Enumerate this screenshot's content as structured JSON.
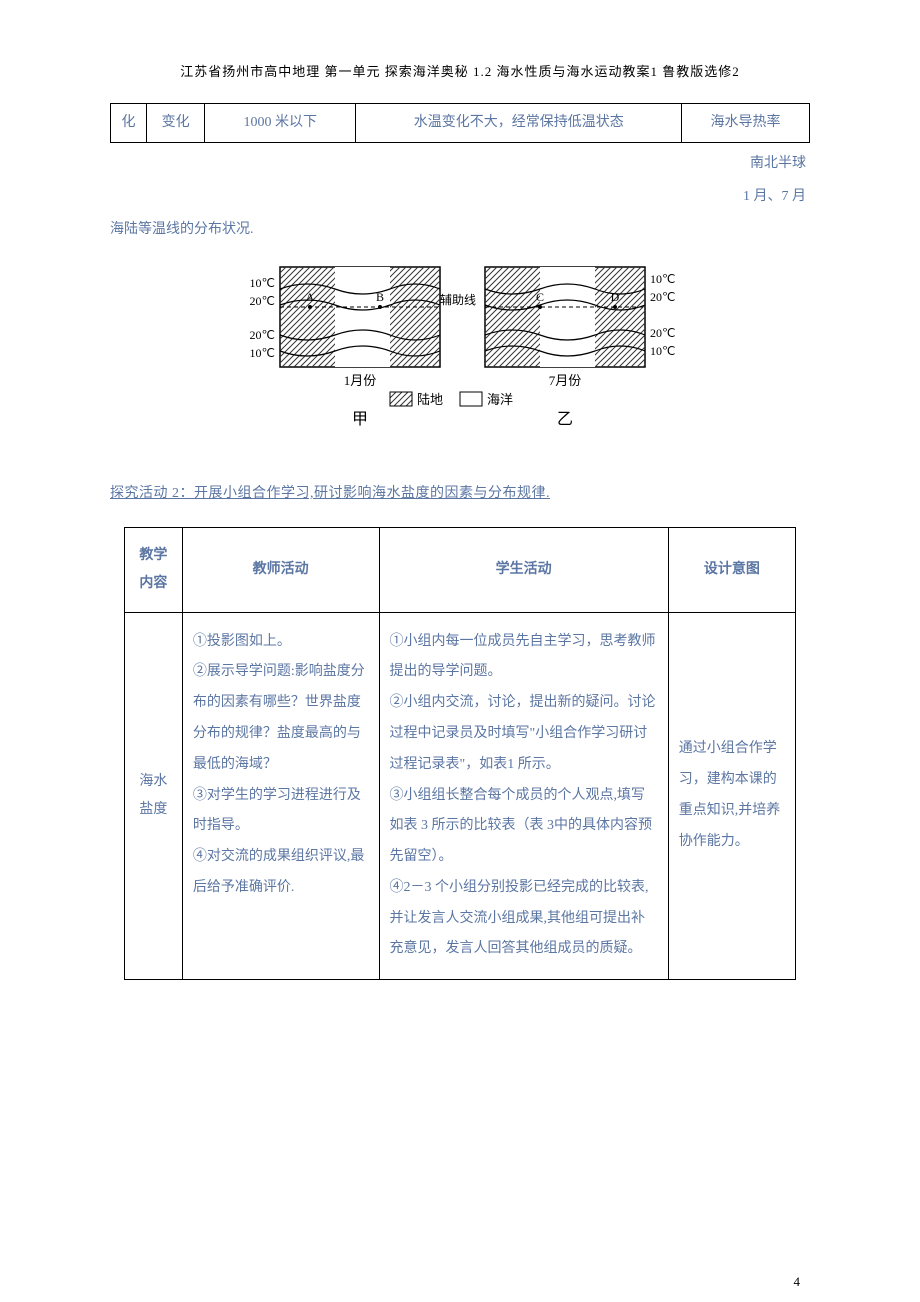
{
  "header": "江苏省扬州市高中地理 第一单元 探索海洋奥秘 1.2 海水性质与海水运动教案1 鲁教版选修2",
  "partial_table": {
    "cells": [
      "化",
      "变化",
      "1000 米以下",
      "水温变化不大，经常保持低温状态",
      "海水导热率"
    ]
  },
  "after_text": "南北半球",
  "body_text_line1": "1 月、7 月",
  "body_text_line2": "海陆等温线的分布状况.",
  "diagram": {
    "left_labels_top": [
      "10℃",
      "20℃"
    ],
    "left_labels_bottom": [
      "20℃",
      "10℃"
    ],
    "right_labels_top": [
      "10℃",
      "20℃"
    ],
    "right_labels_bottom": [
      "20℃",
      "10℃"
    ],
    "point_a": "A",
    "point_b": "B",
    "point_c": "C",
    "point_d": "D",
    "aux_line": "辅助线",
    "month_left": "1月份",
    "month_right": "7月份",
    "legend_land": "陆地",
    "legend_sea": "海洋",
    "caption_left": "甲",
    "caption_right": "乙",
    "colors": {
      "stroke": "#000000",
      "hatch": "#333333",
      "text": "#000000"
    }
  },
  "activity_label": "探究活动 2：开展小组合作学习,研讨影响海水盐度的因素与分布规律.",
  "activity_table": {
    "headers": [
      "教学内容",
      "教师活动",
      "学生活动",
      "设计意图"
    ],
    "row": {
      "topic": "海水盐度",
      "teacher": "①投影图如上。\n②展示导学问题:影响盐度分布的因素有哪些？世界盐度分布的规律？盐度最高的与最低的海域？\n③对学生的学习进程进行及时指导。\n④对交流的成果组织评议,最后给予准确评价.",
      "student": "①小组内每一位成员先自主学习，思考教师提出的导学问题。\n②小组内交流，讨论，提出新的疑问。讨论过程中记录员及时填写\"小组合作学习研讨过程记录表\"，如表1 所示。\n③小组组长整合每个成员的个人观点,填写如表 3 所示的比较表（表 3中的具体内容预先留空）。\n④2－3 个小组分别投影已经完成的比较表,并让发言人交流小组成果,其他组可提出补充意见，发言人回答其他组成员的质疑。",
      "intent": "通过小组合作学习，建构本课的重点知识,并培养协作能力。"
    }
  },
  "page_number": "4"
}
